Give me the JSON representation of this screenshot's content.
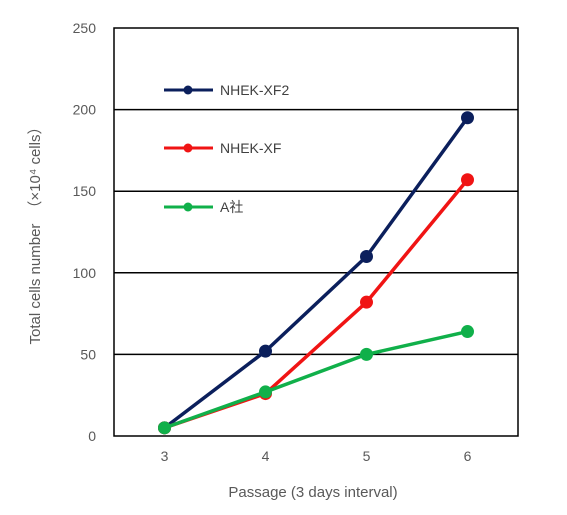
{
  "chart_data": {
    "type": "line",
    "title": "",
    "xlabel": "Passage (3 days interval)",
    "ylabel": "Total cells number",
    "ylabel_unit": "（×10⁴ cells）",
    "x": [
      3,
      4,
      5,
      6
    ],
    "xlim": [
      2.5,
      6.5
    ],
    "ylim": [
      0,
      250
    ],
    "yticks": [
      0,
      50,
      100,
      150,
      200,
      250
    ],
    "grid": true,
    "legend_position": "top-left",
    "series": [
      {
        "name": "NHEK-XF2",
        "color": "#0b1f5c",
        "values": [
          5,
          52,
          110,
          195
        ]
      },
      {
        "name": "NHEK-XF",
        "color": "#f01414",
        "values": [
          5,
          26,
          82,
          157
        ]
      },
      {
        "name": "A社",
        "color": "#10b04a",
        "values": [
          5,
          27,
          50,
          64
        ]
      }
    ]
  }
}
